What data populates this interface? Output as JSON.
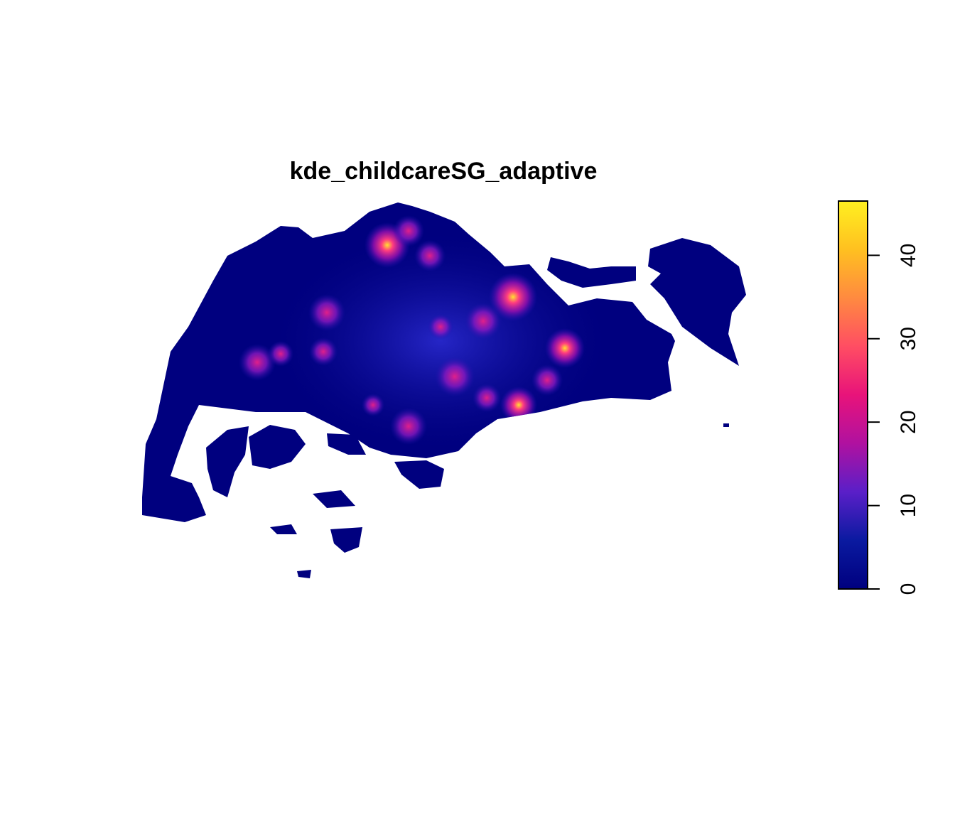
{
  "chart_data": {
    "type": "image",
    "title": "kde_childcareSG_adaptive",
    "zlim": [
      0,
      46.5
    ],
    "zticks": [
      0,
      10,
      20,
      30,
      40
    ],
    "colors": [
      "#00007F",
      "#0A1AA0",
      "#5A1FC8",
      "#B011A0",
      "#E8137A",
      "#FF4D63",
      "#FF8A40",
      "#FFC020",
      "#FFF020"
    ]
  }
}
